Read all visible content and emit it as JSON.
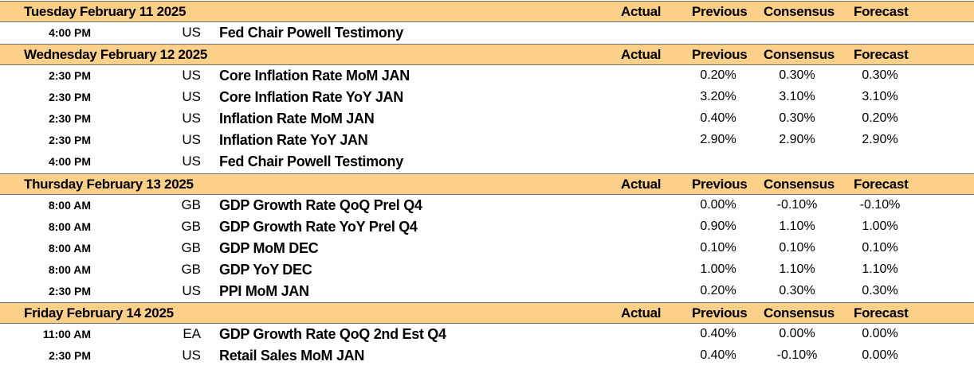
{
  "columns": {
    "actual": "Actual",
    "previous": "Previous",
    "consensus": "Consensus",
    "forecast": "Forecast"
  },
  "days": [
    {
      "date": "Tuesday February 11 2025",
      "events": [
        {
          "time": "4:00 PM",
          "country": "US",
          "event": "Fed Chair Powell Testimony",
          "actual": "",
          "previous": "",
          "consensus": "",
          "forecast": ""
        }
      ]
    },
    {
      "date": "Wednesday February 12 2025",
      "events": [
        {
          "time": "2:30 PM",
          "country": "US",
          "event": "Core Inflation Rate MoM JAN",
          "actual": "",
          "previous": "0.20%",
          "consensus": "0.30%",
          "forecast": "0.30%"
        },
        {
          "time": "2:30 PM",
          "country": "US",
          "event": "Core Inflation Rate YoY JAN",
          "actual": "",
          "previous": "3.20%",
          "consensus": "3.10%",
          "forecast": "3.10%"
        },
        {
          "time": "2:30 PM",
          "country": "US",
          "event": "Inflation Rate MoM JAN",
          "actual": "",
          "previous": "0.40%",
          "consensus": "0.30%",
          "forecast": "0.20%"
        },
        {
          "time": "2:30 PM",
          "country": "US",
          "event": "Inflation Rate YoY JAN",
          "actual": "",
          "previous": "2.90%",
          "consensus": "2.90%",
          "forecast": "2.90%"
        },
        {
          "time": "4:00 PM",
          "country": "US",
          "event": "Fed Chair Powell Testimony",
          "actual": "",
          "previous": "",
          "consensus": "",
          "forecast": ""
        }
      ]
    },
    {
      "date": "Thursday February 13 2025",
      "events": [
        {
          "time": "8:00 AM",
          "country": "GB",
          "event": "GDP Growth Rate QoQ Prel Q4",
          "actual": "",
          "previous": "0.00%",
          "consensus": "-0.10%",
          "forecast": "-0.10%"
        },
        {
          "time": "8:00 AM",
          "country": "GB",
          "event": "GDP Growth Rate YoY Prel Q4",
          "actual": "",
          "previous": "0.90%",
          "consensus": "1.10%",
          "forecast": "1.00%"
        },
        {
          "time": "8:00 AM",
          "country": "GB",
          "event": "GDP MoM DEC",
          "actual": "",
          "previous": "0.10%",
          "consensus": "0.10%",
          "forecast": "0.10%"
        },
        {
          "time": "8:00 AM",
          "country": "GB",
          "event": "GDP YoY DEC",
          "actual": "",
          "previous": "1.00%",
          "consensus": "1.10%",
          "forecast": "1.10%"
        },
        {
          "time": "2:30 PM",
          "country": "US",
          "event": "PPI MoM JAN",
          "actual": "",
          "previous": "0.20%",
          "consensus": "0.30%",
          "forecast": "0.30%"
        }
      ]
    },
    {
      "date": "Friday February 14 2025",
      "events": [
        {
          "time": "11:00 AM",
          "country": "EA",
          "event": "GDP Growth Rate QoQ 2nd Est Q4",
          "actual": "",
          "previous": "0.40%",
          "consensus": "0.00%",
          "forecast": "0.00%"
        },
        {
          "time": "2:30 PM",
          "country": "US",
          "event": "Retail Sales MoM JAN",
          "actual": "",
          "previous": "0.40%",
          "consensus": "-0.10%",
          "forecast": "0.00%"
        }
      ]
    }
  ]
}
